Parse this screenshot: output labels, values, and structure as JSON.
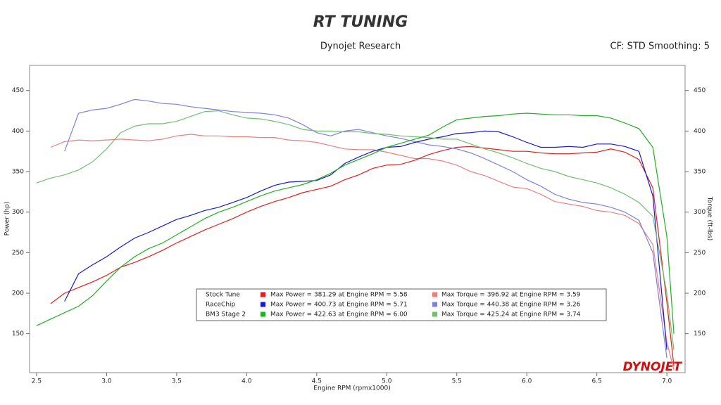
{
  "chart_data": {
    "type": "line",
    "logo": "RT TUNING",
    "title": "Dynojet Research",
    "subtitle": "CF: STD Smoothing: 5",
    "watermark": "DYNOJET",
    "xlabel": "Engine RPM (rpmx1000)",
    "ylabel": "Power (hp)",
    "y2label": "Torque (ft-lbs)",
    "xlim": [
      2.45,
      7.13
    ],
    "ylim": [
      102,
      481
    ],
    "y2lim": [
      102,
      481
    ],
    "xticks": [
      2.5,
      {
        "value": 3,
        "label": "3.0"
      },
      3.5,
      {
        "value": 4,
        "label": "4.0"
      },
      4.5,
      {
        "value": 5,
        "label": "5.0"
      },
      5.5,
      {
        "value": 6,
        "label": "6.0"
      },
      6.5,
      {
        "value": 7,
        "label": "7.0"
      }
    ],
    "yticks": [
      150,
      200,
      250,
      300,
      350,
      400,
      450
    ],
    "y2ticks": [
      150,
      200,
      250,
      300,
      350,
      400,
      450
    ],
    "x": [
      2.5,
      2.6,
      2.7,
      2.8,
      2.9,
      3.0,
      3.1,
      3.2,
      3.3,
      3.4,
      3.5,
      3.6,
      3.7,
      3.8,
      3.9,
      4.0,
      4.1,
      4.2,
      4.3,
      4.4,
      4.5,
      4.6,
      4.7,
      4.8,
      4.9,
      5.0,
      5.1,
      5.2,
      5.3,
      5.4,
      5.5,
      5.6,
      5.7,
      5.8,
      5.9,
      6.0,
      6.1,
      6.2,
      6.3,
      6.4,
      6.5,
      6.6,
      6.7,
      6.8,
      6.9,
      7.0,
      7.05
    ],
    "series": [
      {
        "name": "Stock Tune",
        "color": "#e02020",
        "torque_color": "#e88080",
        "max_power_label": "Max Power = 381.29 at Engine RPM = 5.58",
        "max_torque_label": "Max Torque = 396.92 at Engine RPM = 3.59",
        "values": [
          null,
          187,
          200,
          207,
          214,
          222,
          232,
          238,
          245,
          253,
          262,
          270,
          278,
          285,
          292,
          300,
          307,
          313,
          318,
          324,
          328,
          332,
          340,
          346,
          354,
          358,
          359,
          364,
          371,
          376,
          380,
          381,
          379,
          377,
          375,
          375,
          373,
          372,
          372,
          373,
          374,
          378,
          374,
          365,
          330,
          189,
          110
        ],
        "torque_values": [
          null,
          380,
          387,
          389,
          388,
          389,
          390,
          389,
          388,
          390,
          394,
          396,
          394,
          394,
          393,
          393,
          392,
          392,
          389,
          388,
          386,
          382,
          378,
          377,
          377,
          374,
          370,
          366,
          366,
          363,
          358,
          350,
          345,
          338,
          331,
          329,
          322,
          313,
          310,
          307,
          302,
          300,
          296,
          286,
          260,
          140,
          105
        ]
      },
      {
        "name": "RaceChip",
        "color": "#1a1acc",
        "torque_color": "#8080dd",
        "max_power_label": "Max Power = 400.73 at Engine RPM = 5.71",
        "max_torque_label": "Max Torque = 440.38 at Engine RPM = 3.26",
        "values": [
          null,
          null,
          190,
          224,
          235,
          245,
          257,
          268,
          275,
          283,
          291,
          296,
          302,
          306,
          312,
          318,
          326,
          333,
          337,
          338,
          339,
          346,
          360,
          368,
          375,
          380,
          381,
          386,
          390,
          393,
          397,
          398,
          400,
          399,
          393,
          386,
          380,
          380,
          381,
          380,
          384,
          384,
          381,
          375,
          320,
          130,
          null
        ],
        "torque_values": [
          null,
          null,
          375,
          422,
          426,
          428,
          433,
          439,
          437,
          434,
          433,
          430,
          428,
          426,
          424,
          423,
          422,
          420,
          416,
          408,
          398,
          394,
          400,
          402,
          398,
          394,
          391,
          387,
          383,
          381,
          378,
          373,
          366,
          358,
          350,
          340,
          332,
          322,
          316,
          312,
          310,
          306,
          300,
          290,
          250,
          120,
          null
        ]
      },
      {
        "name": "BM3 Stage 2",
        "color": "#20b020",
        "torque_color": "#70c070",
        "max_power_label": "Max Power = 422.63 at Engine RPM = 6.00",
        "max_torque_label": "Max Torque = 425.24 at Engine RPM = 3.74",
        "values": [
          160,
          168,
          176,
          184,
          197,
          215,
          232,
          245,
          255,
          262,
          272,
          282,
          292,
          300,
          306,
          313,
          320,
          326,
          330,
          334,
          340,
          348,
          358,
          365,
          372,
          380,
          385,
          390,
          395,
          405,
          414,
          416,
          418,
          419,
          421,
          422,
          421,
          420,
          420,
          419,
          419,
          416,
          410,
          403,
          380,
          270,
          150
        ],
        "torque_values": [
          336,
          342,
          346,
          352,
          362,
          378,
          398,
          406,
          409,
          409,
          412,
          418,
          424,
          425,
          420,
          416,
          415,
          412,
          408,
          402,
          400,
          400,
          399,
          399,
          397,
          396,
          394,
          393,
          392,
          390,
          390,
          384,
          378,
          373,
          367,
          360,
          354,
          350,
          344,
          340,
          336,
          330,
          322,
          312,
          295,
          200,
          130
        ]
      }
    ]
  }
}
